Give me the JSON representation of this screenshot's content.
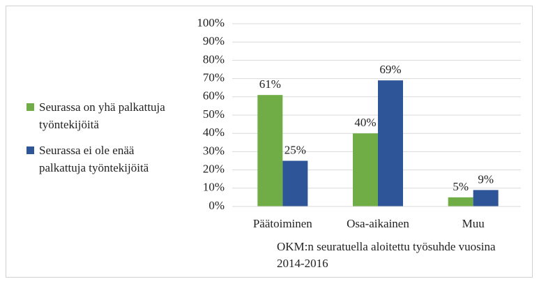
{
  "chart_data": {
    "type": "bar",
    "categories": [
      "Päätoiminen",
      "Osa-aikainen",
      "Muu"
    ],
    "series": [
      {
        "name": "Seurassa on yhä palkattuja työntekijöitä",
        "color": "#70ad47",
        "values": [
          61,
          40,
          5
        ],
        "value_labels": [
          "61%",
          "40%",
          "5%"
        ]
      },
      {
        "name": "Seurassa ei ole enää palkattuja työntekijöitä",
        "color": "#2e5597",
        "values": [
          25,
          69,
          9
        ],
        "value_labels": [
          "25%",
          "69%",
          "9%"
        ]
      }
    ],
    "x_label": "OKM:n seuratuella aloitettu työsuhde vuosina 2014-2016",
    "ylim": [
      0,
      100
    ],
    "yticks": [
      {
        "value": 0,
        "label": "0%"
      },
      {
        "value": 10,
        "label": "10%"
      },
      {
        "value": 20,
        "label": "20%"
      },
      {
        "value": 30,
        "label": "30%"
      },
      {
        "value": 40,
        "label": "40%"
      },
      {
        "value": 50,
        "label": "50%"
      },
      {
        "value": 60,
        "label": "60%"
      },
      {
        "value": 70,
        "label": "70%"
      },
      {
        "value": 80,
        "label": "80%"
      },
      {
        "value": 90,
        "label": "90%"
      },
      {
        "value": 100,
        "label": "100%"
      }
    ],
    "grid": true,
    "legend": "left"
  }
}
